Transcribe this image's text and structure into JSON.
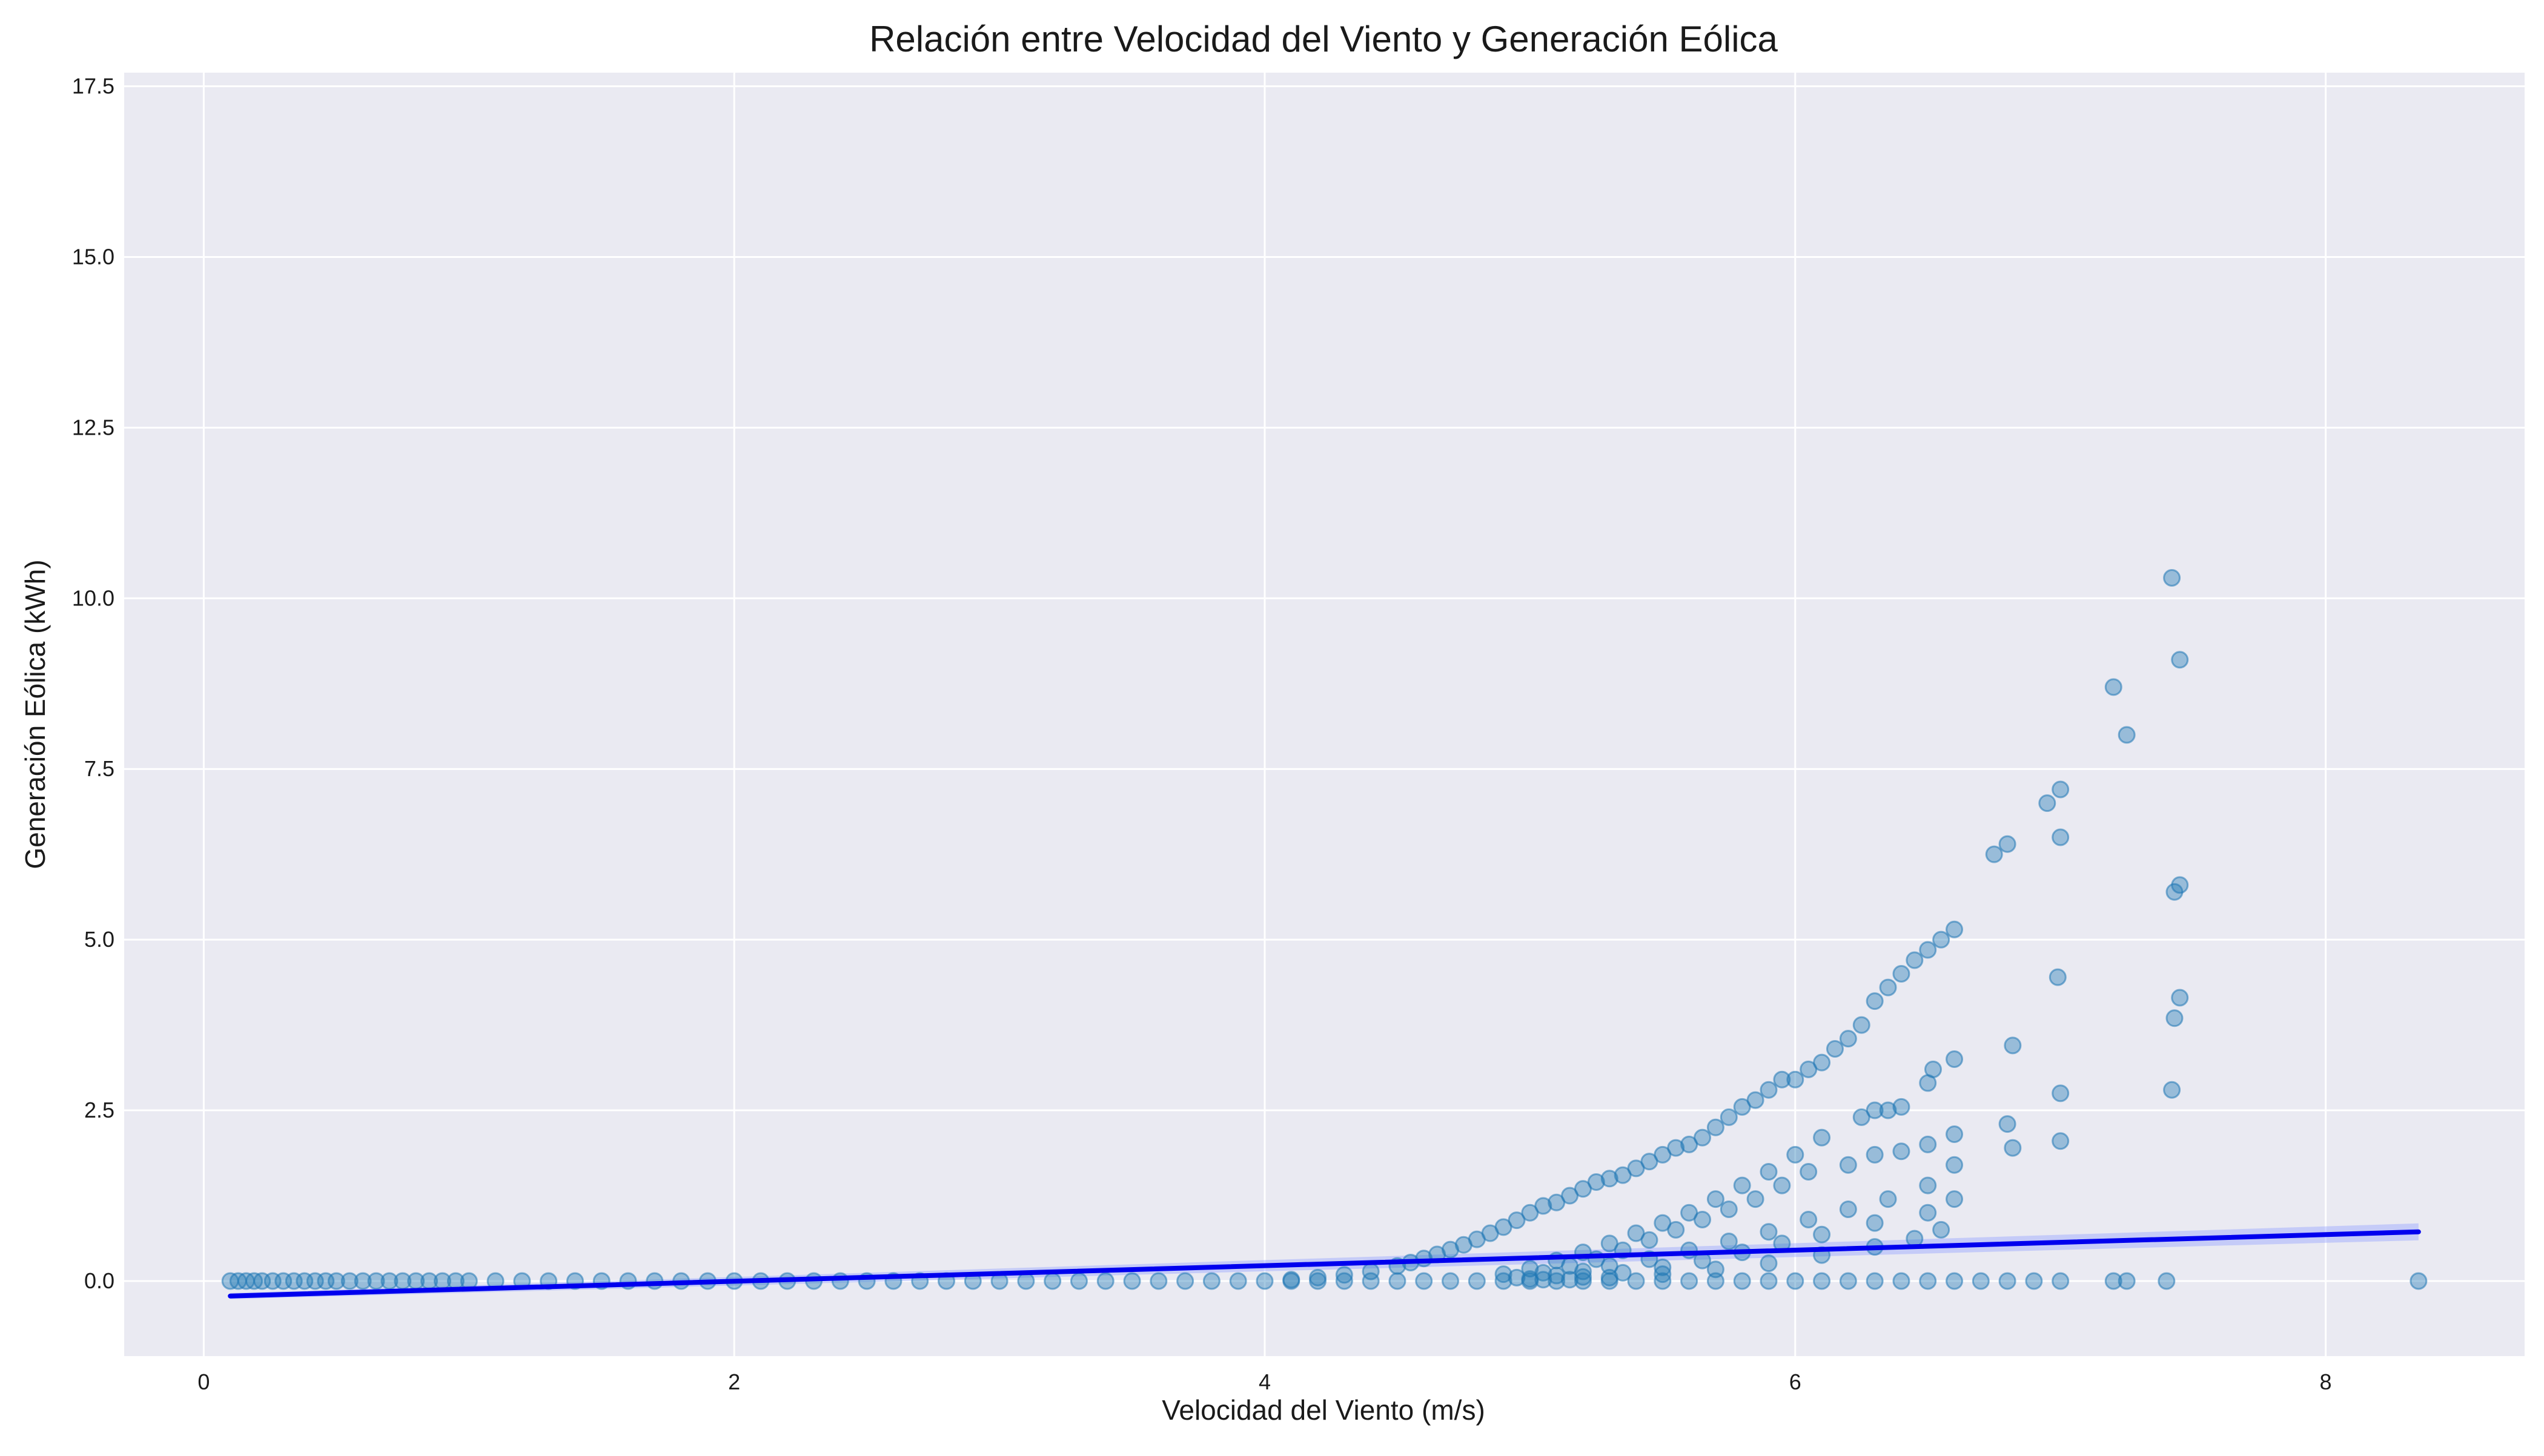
{
  "chart_data": {
    "type": "scatter",
    "title": "Relación entre Velocidad del Viento y Generación Eólica",
    "xlabel": "Velocidad del Viento (m/s)",
    "ylabel": "Generación Eólica (kWh)",
    "xlim": [
      -0.3,
      8.75
    ],
    "ylim": [
      -1.1,
      17.7
    ],
    "x_ticks": [
      0,
      2,
      4,
      6,
      8
    ],
    "x_tick_labels": [
      "0",
      "2",
      "4",
      "6",
      "8"
    ],
    "y_ticks": [
      0,
      2.5,
      5,
      7.5,
      10,
      12.5,
      15,
      17.5
    ],
    "y_tick_labels": [
      "0.0",
      "2.5",
      "5.0",
      "7.5",
      "10.0",
      "12.5",
      "15.0",
      "17.5"
    ],
    "grid": true,
    "colors": {
      "background": "#eaeaf2",
      "grid": "#ffffff",
      "points": "#1f77b4",
      "regression_line": "#0000ee",
      "confidence_band": "#9aa6ff"
    },
    "series": [
      {
        "type": "scatter",
        "x": [
          0.1,
          0.13,
          0.16,
          0.19,
          0.22,
          0.26,
          0.3,
          0.34,
          0.38,
          0.42,
          0.46,
          0.5,
          0.55,
          0.6,
          0.65,
          0.7,
          0.75,
          0.8,
          0.85,
          0.9,
          0.95,
          1.0,
          1.1,
          1.2,
          1.3,
          1.4,
          1.5,
          1.6,
          1.7,
          1.8,
          1.9,
          2.0,
          2.1,
          2.2,
          2.3,
          2.4,
          2.5,
          2.6,
          2.7,
          2.8,
          2.9,
          3.0,
          3.1,
          3.2,
          3.3,
          3.4,
          3.5,
          3.6,
          3.7,
          3.8,
          3.9,
          4.0,
          4.1,
          4.2,
          4.3,
          4.4,
          4.5,
          4.6,
          4.7,
          4.8,
          4.9,
          5.0,
          5.1,
          5.2,
          5.3,
          5.4,
          5.5,
          5.6,
          5.7,
          5.8,
          5.9,
          6.0,
          6.1,
          6.2,
          6.3,
          6.4,
          6.5,
          6.6,
          6.7,
          6.8,
          6.9,
          7.0,
          7.2,
          7.25,
          7.4,
          8.35,
          4.1,
          4.2,
          4.3,
          4.4,
          4.5,
          4.55,
          4.6,
          4.65,
          4.7,
          4.75,
          4.8,
          4.85,
          4.9,
          4.95,
          5.0,
          5.05,
          5.1,
          5.15,
          5.2,
          5.25,
          5.3,
          5.35,
          5.4,
          5.45,
          5.5,
          5.55,
          5.6,
          5.65,
          5.7,
          5.75,
          5.8,
          5.85,
          5.9,
          5.95,
          6.0,
          6.05,
          6.1,
          6.15,
          6.2,
          6.25,
          6.3,
          6.35,
          6.4,
          6.45,
          6.5,
          6.55,
          6.6,
          6.75,
          6.8,
          6.95,
          7.0,
          7.2,
          7.25,
          7.45,
          7.42,
          4.9,
          5.0,
          5.1,
          5.2,
          5.3,
          5.4,
          5.5,
          5.6,
          5.7,
          5.8,
          5.9,
          6.0,
          6.1,
          6.25,
          6.3,
          6.35,
          6.4,
          6.5,
          6.52,
          6.6,
          6.82,
          6.99,
          7.0,
          7.43,
          7.45,
          4.95,
          5.05,
          5.15,
          5.25,
          5.35,
          5.45,
          5.55,
          5.65,
          5.75,
          5.85,
          5.95,
          6.05,
          6.2,
          6.3,
          6.4,
          6.5,
          6.6,
          6.8,
          7.0,
          7.42,
          5.0,
          5.1,
          5.2,
          5.3,
          5.45,
          5.6,
          5.75,
          5.9,
          6.05,
          6.2,
          6.35,
          6.5,
          6.6,
          6.82,
          7.0,
          7.43,
          7.45,
          5.05,
          5.2,
          5.35,
          5.5,
          5.65,
          5.8,
          5.95,
          6.1,
          6.3,
          6.5,
          6.6,
          5.15,
          5.3,
          5.5,
          5.7,
          5.9,
          6.1,
          6.3,
          6.45,
          6.55
        ],
        "y": [
          0,
          0,
          0,
          0,
          0,
          0,
          0,
          0,
          0,
          0,
          0,
          0,
          0,
          0,
          0,
          0,
          0,
          0,
          0,
          0,
          0,
          0,
          0,
          0,
          0,
          0,
          0,
          0,
          0,
          0,
          0,
          0,
          0,
          0,
          0,
          0,
          0,
          0,
          0,
          0,
          0,
          0,
          0,
          0,
          0,
          0,
          0,
          0,
          0,
          0,
          0,
          0,
          0,
          0,
          0,
          0,
          0,
          0,
          0,
          0,
          0,
          0,
          0,
          0,
          0,
          0,
          0,
          0,
          0,
          0,
          0,
          0,
          0,
          0,
          0,
          0,
          0,
          0,
          0,
          0,
          0,
          0,
          0,
          0,
          0,
          0,
          0.02,
          0.05,
          0.09,
          0.14,
          0.22,
          0.27,
          0.33,
          0.39,
          0.46,
          0.53,
          0.61,
          0.7,
          0.79,
          0.89,
          1.0,
          1.1,
          1.15,
          1.25,
          1.35,
          1.45,
          1.5,
          1.55,
          1.65,
          1.75,
          1.85,
          1.95,
          2.0,
          2.1,
          2.25,
          2.4,
          2.55,
          2.65,
          2.8,
          2.95,
          2.95,
          3.1,
          3.2,
          3.4,
          3.55,
          3.75,
          4.1,
          4.3,
          4.5,
          4.7,
          4.85,
          5.0,
          5.15,
          6.25,
          6.4,
          7.0,
          7.2,
          8.7,
          8.0,
          9.1,
          10.3,
          0.1,
          0.18,
          0.3,
          0.42,
          0.55,
          0.7,
          0.85,
          1.0,
          1.2,
          1.4,
          1.6,
          1.85,
          2.1,
          2.4,
          2.5,
          2.5,
          2.55,
          2.9,
          3.1,
          3.25,
          3.45,
          4.45,
          6.5,
          5.7,
          5.8,
          0.05,
          0.12,
          0.22,
          0.32,
          0.45,
          0.6,
          0.75,
          0.9,
          1.05,
          1.2,
          1.4,
          1.6,
          1.7,
          1.85,
          1.9,
          2.0,
          2.15,
          2.3,
          2.75,
          2.8,
          0.03,
          0.08,
          0.14,
          0.22,
          0.32,
          0.45,
          0.58,
          0.72,
          0.9,
          1.05,
          1.2,
          1.4,
          1.7,
          1.95,
          2.05,
          3.85,
          4.15,
          0.02,
          0.06,
          0.12,
          0.2,
          0.3,
          0.42,
          0.55,
          0.68,
          0.85,
          1.0,
          1.2,
          0.02,
          0.05,
          0.1,
          0.17,
          0.26,
          0.38,
          0.5,
          0.62,
          0.75
        ]
      },
      {
        "type": "regression_line",
        "x": [
          0.1,
          8.35
        ],
        "y": [
          -0.22,
          0.72
        ]
      }
    ]
  }
}
